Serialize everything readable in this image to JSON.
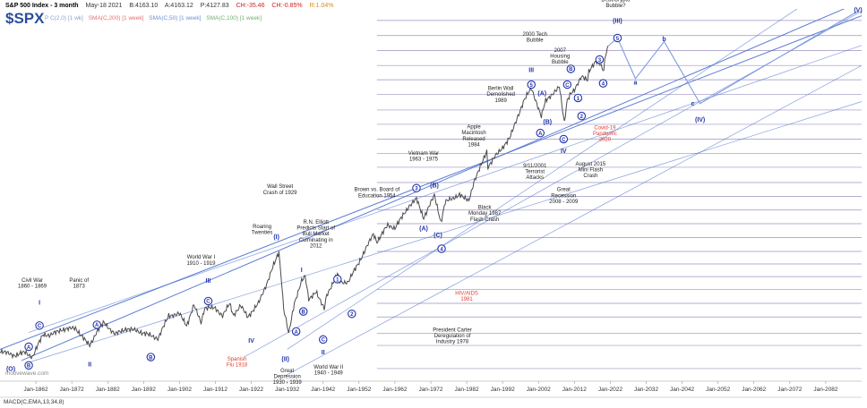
{
  "header": {
    "title": "S&P 500 Index - 3 month",
    "date": "May-18 2021",
    "bid": "B:4163.10",
    "ask": "A:4163.12",
    "price": "P:4127.83",
    "change": "CH:-35.46",
    "change_pct": "CH:-0.85%",
    "r": "R:1.04%"
  },
  "ticker": "$SPX",
  "indicators": {
    "sma200": "SMA(C,200) [1 week]",
    "sma50": "SMA(C,50) [1 week]",
    "sma100": "SMA(C,100) [1 week]",
    "pre": "P C(2,0) [1 wk]"
  },
  "watermark": "motivewave.com",
  "macd_label": "MACD(C,EMA,13,34,8)",
  "colors": {
    "price": "#4a4a4a",
    "channel": "#4b6fce",
    "wave": "#2233aa",
    "event": "#e04030",
    "hline": "#8a80b8"
  },
  "chart_data": {
    "type": "line",
    "title": "",
    "xlabel": "",
    "ylabel": "",
    "scale": "log",
    "xlim": [
      1852,
      2092
    ],
    "ylim": [
      1.6,
      10000
    ],
    "x_tick_labels": [
      "Jan-1862",
      "Jan-1872",
      "Jan-1882",
      "Jan-1892",
      "Jan-1902",
      "Jan-1912",
      "Jan-1922",
      "Jan-1932",
      "Jan-1942",
      "Jan-1952",
      "Jan-1962",
      "Jan-1972",
      "Jan-1982",
      "Jan-1992",
      "Jan-2002",
      "Jan-2012",
      "Jan-2022",
      "Jan-2032",
      "Jan-2042",
      "Jan-2052",
      "Jan-2062",
      "Jan-2072",
      "Jan-2082"
    ],
    "x_ticks": [
      1862,
      1872,
      1882,
      1892,
      1902,
      1912,
      1922,
      1932,
      1942,
      1952,
      1962,
      1972,
      1982,
      1992,
      2002,
      2012,
      2022,
      2032,
      2042,
      2052,
      2062,
      2072,
      2082
    ],
    "series": [
      {
        "x": [
          1852,
          1856,
          1859,
          1861,
          1864,
          1866,
          1869,
          1873,
          1876,
          1877,
          1879,
          1881,
          1884,
          1887,
          1890,
          1893,
          1896,
          1899,
          1902,
          1904,
          1906,
          1908,
          1909,
          1912,
          1914,
          1916,
          1917,
          1919,
          1921,
          1924,
          1926,
          1929.7,
          1930.5,
          1931,
          1932.4,
          1934,
          1936,
          1937,
          1938,
          1940,
          1942.3,
          1943,
          1946,
          1947,
          1949,
          1952,
          1956,
          1957,
          1960,
          1962,
          1966,
          1968,
          1970,
          1973,
          1974.8,
          1976,
          1980,
          1982.6,
          1984,
          1987.6,
          1987.9,
          1990,
          1994,
          1996,
          1998,
          2000,
          2002.8,
          2004,
          2007.8,
          2009.2,
          2010,
          2011,
          2012,
          2014,
          2015.6,
          2016,
          2018,
          2019,
          2020.2,
          2020.5,
          2021.4
        ],
        "y": [
          2.9,
          2.6,
          2.8,
          2.5,
          4.3,
          4.2,
          4.8,
          5.0,
          3.6,
          3.3,
          4.6,
          5.7,
          4.3,
          4.9,
          4.7,
          4.3,
          3.9,
          6.7,
          7.0,
          5.3,
          8.6,
          5.7,
          8.1,
          8.0,
          6.7,
          8.9,
          6.8,
          8.5,
          6.5,
          9.0,
          13.5,
          31.0,
          14.0,
          8.0,
          4.4,
          9.0,
          15.5,
          17.0,
          9.8,
          12.0,
          7.8,
          11.0,
          18.0,
          14.8,
          15.0,
          24.0,
          47.0,
          39.0,
          58.0,
          54.0,
          92.0,
          108.0,
          69.0,
          118.0,
          62.0,
          100.0,
          120.0,
          102.0,
          163.0,
          330.0,
          224.0,
          300.0,
          460.0,
          740.0,
          1130.0,
          1527.0,
          776.0,
          1130.0,
          1565.0,
          677.0,
          1150.0,
          1330.0,
          1420.0,
          2050.0,
          1870.0,
          2200.0,
          2930.0,
          2750.0,
          2237.0,
          3100.0,
          4163.0
        ]
      }
    ],
    "wave_labels": [
      {
        "text": "(O)",
        "x": 1855,
        "y": 1.9
      },
      {
        "text": "A",
        "x": 1860,
        "y": 3.2,
        "circle": true
      },
      {
        "text": "B",
        "x": 1860,
        "y": 2.05,
        "circle": true
      },
      {
        "text": "C",
        "x": 1863,
        "y": 5.3,
        "circle": true
      },
      {
        "text": "I",
        "x": 1863,
        "y": 9.2
      },
      {
        "text": "II",
        "x": 1877,
        "y": 2.1
      },
      {
        "text": "A",
        "x": 1879,
        "y": 5.4,
        "circle": true
      },
      {
        "text": "B",
        "x": 1894,
        "y": 2.5,
        "circle": true
      },
      {
        "text": "C",
        "x": 1910,
        "y": 9.5,
        "circle": true
      },
      {
        "text": "III",
        "x": 1910,
        "y": 15.5
      },
      {
        "text": "IV",
        "x": 1922,
        "y": 3.7
      },
      {
        "text": "(I)",
        "x": 1929,
        "y": 44
      },
      {
        "text": "(II)",
        "x": 1931.5,
        "y": 2.4
      },
      {
        "text": "A",
        "x": 1934.5,
        "y": 4.6,
        "circle": true
      },
      {
        "text": "B",
        "x": 1936.5,
        "y": 7.4,
        "circle": true
      },
      {
        "text": "C",
        "x": 1942,
        "y": 3.8,
        "circle": true
      },
      {
        "text": "II",
        "x": 1942,
        "y": 2.8
      },
      {
        "text": "I",
        "x": 1936,
        "y": 20.0
      },
      {
        "text": "1",
        "x": 1946,
        "y": 16.0,
        "circle": true
      },
      {
        "text": "2",
        "x": 1950,
        "y": 7.0,
        "circle": true
      },
      {
        "text": "3",
        "x": 1968,
        "y": 140,
        "circle": true
      },
      {
        "text": "(B)",
        "x": 1973,
        "y": 150
      },
      {
        "text": "(A)",
        "x": 1970,
        "y": 54
      },
      {
        "text": "(C)",
        "x": 1974,
        "y": 46
      },
      {
        "text": "4",
        "x": 1975,
        "y": 33,
        "circle": true
      },
      {
        "text": "III",
        "x": 2000,
        "y": 2350
      },
      {
        "text": "5",
        "x": 2000,
        "y": 1650,
        "circle": true
      },
      {
        "text": "(A)",
        "x": 2003,
        "y": 1350
      },
      {
        "text": "(B)",
        "x": 2004.5,
        "y": 680
      },
      {
        "text": "A",
        "x": 2002.5,
        "y": 520,
        "circle": true
      },
      {
        "text": "B",
        "x": 2011,
        "y": 2400,
        "circle": true
      },
      {
        "text": "C",
        "x": 2010,
        "y": 1650,
        "circle": true
      },
      {
        "text": "C",
        "x": 2009,
        "y": 450,
        "circle": true
      },
      {
        "text": "IV",
        "x": 2009,
        "y": 340
      },
      {
        "text": "1",
        "x": 2013,
        "y": 1200,
        "circle": true
      },
      {
        "text": "2",
        "x": 2014,
        "y": 780,
        "circle": true
      },
      {
        "text": "3",
        "x": 2019,
        "y": 3000,
        "circle": true
      },
      {
        "text": "4",
        "x": 2020,
        "y": 1700,
        "circle": true
      },
      {
        "text": "5",
        "x": 2024,
        "y": 5000,
        "circle": true
      },
      {
        "text": "(III)",
        "x": 2024,
        "y": 7600
      },
      {
        "text": "a",
        "x": 2029,
        "y": 1750
      },
      {
        "text": "b",
        "x": 2037,
        "y": 4900
      },
      {
        "text": "c",
        "x": 2045,
        "y": 1050
      },
      {
        "text": "(IV)",
        "x": 2047,
        "y": 720
      },
      {
        "text": "(V)",
        "x": 2091,
        "y": 9800
      }
    ],
    "annotations": [
      {
        "text": [
          "Civil War",
          "1860 - 1869"
        ],
        "x": 1861,
        "y": 15.0,
        "color": "text"
      },
      {
        "text": [
          "Panic of",
          "1873"
        ],
        "x": 1874,
        "y": 15.0,
        "color": "text"
      },
      {
        "text": [
          "World War I",
          "1910 - 1919"
        ],
        "x": 1908,
        "y": 26.0,
        "color": "text"
      },
      {
        "text": [
          "Spanish",
          "Flu 1918"
        ],
        "x": 1918,
        "y": 2.3,
        "color": "event"
      },
      {
        "text": [
          "Roaring",
          "Twenties"
        ],
        "x": 1925,
        "y": 54.0,
        "color": "text"
      },
      {
        "text": [
          "Wall Street",
          "Crash of 1929"
        ],
        "x": 1930,
        "y": 140.0,
        "color": "text"
      },
      {
        "text": [
          "R.N. Elliott",
          "Predicts Start of",
          "Bull Market",
          "Culminating in",
          "2012"
        ],
        "x": 1940,
        "y": 60.0,
        "color": "text"
      },
      {
        "text": [
          "Great",
          "Depression",
          "1930 - 1939"
        ],
        "x": 1932,
        "y": 1.75,
        "color": "text"
      },
      {
        "text": [
          "World War II",
          "1940 - 1949"
        ],
        "x": 1943.5,
        "y": 1.9,
        "color": "text"
      },
      {
        "text": [
          "Brown vs. Board of",
          "Education 1954"
        ],
        "x": 1957,
        "y": 130.0,
        "color": "text"
      },
      {
        "text": [
          "Vietnam War",
          "1963 - 1975"
        ],
        "x": 1970,
        "y": 310.0,
        "color": "text"
      },
      {
        "text": [
          "Apple",
          "Macintosh",
          "Released",
          "1984"
        ],
        "x": 1984,
        "y": 580.0,
        "color": "text"
      },
      {
        "text": [
          "Berlin Wall",
          "Demolished",
          "1989"
        ],
        "x": 1991.5,
        "y": 1450.0,
        "color": "text"
      },
      {
        "text": [
          "2000 Tech",
          "Bubble"
        ],
        "x": 2001,
        "y": 5300.0,
        "color": "text"
      },
      {
        "text": [
          "2007",
          "Housing",
          "Bubble"
        ],
        "x": 2008,
        "y": 3600.0,
        "color": "text"
      },
      {
        "text": [
          "Debt/Crypto",
          "Bubble?"
        ],
        "x": 2023.5,
        "y": 12000.0,
        "color": "text"
      },
      {
        "text": [
          "HIV/AIDS",
          "1981"
        ],
        "x": 1982,
        "y": 11.0,
        "color": "event"
      },
      {
        "text": [
          "President Carter",
          "Deregulation of",
          "Industry 1978"
        ],
        "x": 1978,
        "y": 4.6,
        "color": "text"
      },
      {
        "text": [
          "Black",
          "Monday 1987",
          "Flash Crash"
        ],
        "x": 1987,
        "y": 85.0,
        "color": "text"
      },
      {
        "text": [
          "9/11/2001",
          "Terrorist",
          "Attacks"
        ],
        "x": 2001,
        "y": 230.0,
        "color": "text"
      },
      {
        "text": [
          "Great",
          "Recession",
          "2008 - 2009"
        ],
        "x": 2009,
        "y": 130.0,
        "color": "text"
      },
      {
        "text": [
          "August 2015",
          "Mini Flash",
          "Crash"
        ],
        "x": 2016.5,
        "y": 240.0,
        "color": "text"
      },
      {
        "text": [
          "Covid-19",
          "Pandemic",
          "2020"
        ],
        "x": 2020.5,
        "y": 570.0,
        "color": "event"
      }
    ],
    "h_levels": [
      1.9,
      3.3,
      4.4,
      6.5,
      9.0,
      12.5,
      17.0,
      23.0,
      31.0,
      43.0,
      60.0,
      83.0,
      115.0,
      160.0,
      230.0,
      320.0,
      450.0,
      640.0,
      900.0,
      1300.0,
      1850.0,
      2600.0,
      3700.0,
      5300.0,
      7600.0
    ],
    "channels": [
      {
        "x": [
          1852,
          2092
        ],
        "y": [
          3.0,
          8500
        ]
      },
      {
        "x": [
          1858,
          2092
        ],
        "y": [
          2.3,
          12000
        ]
      },
      {
        "x": [
          1930,
          2092
        ],
        "y": [
          1.5,
          2600
        ]
      },
      {
        "x": [
          1860,
          2092
        ],
        "y": [
          4.5,
          4200
        ]
      },
      {
        "x": [
          1860,
          2092
        ],
        "y": [
          2.2,
          1100
        ]
      },
      {
        "x": [
          1932,
          2092
        ],
        "y": [
          3.0,
          28000
        ]
      },
      {
        "x": [
          1920,
          2092
        ],
        "y": [
          2.5,
          9500
        ]
      }
    ],
    "projection": {
      "x": [
        2021.5,
        2024,
        2029,
        2037,
        2047,
        2091
      ],
      "y": [
        4163,
        5000,
        1900,
        4600,
        1050,
        9500
      ]
    }
  }
}
